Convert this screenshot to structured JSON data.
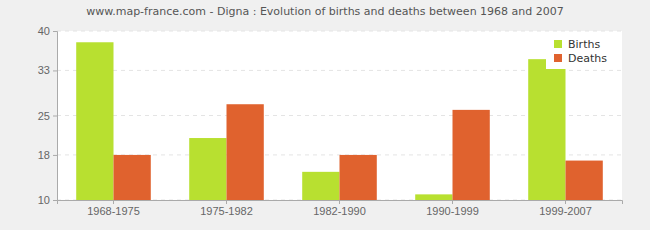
{
  "chart_data": {
    "type": "bar",
    "title": "www.map-france.com - Digna : Evolution of births and deaths between 1968 and 2007",
    "categories": [
      "1968-1975",
      "1975-1982",
      "1982-1990",
      "1990-1999",
      "1999-2007"
    ],
    "series": [
      {
        "name": "Births",
        "color": "#b8e030",
        "values": [
          38,
          21,
          15,
          11,
          35
        ]
      },
      {
        "name": "Deaths",
        "color": "#e0622e",
        "values": [
          18,
          27,
          18,
          26,
          17
        ]
      }
    ],
    "ylim": [
      10,
      40
    ],
    "yticks": [
      10,
      18,
      25,
      33,
      40
    ],
    "grid": true,
    "legend": "top-right"
  }
}
